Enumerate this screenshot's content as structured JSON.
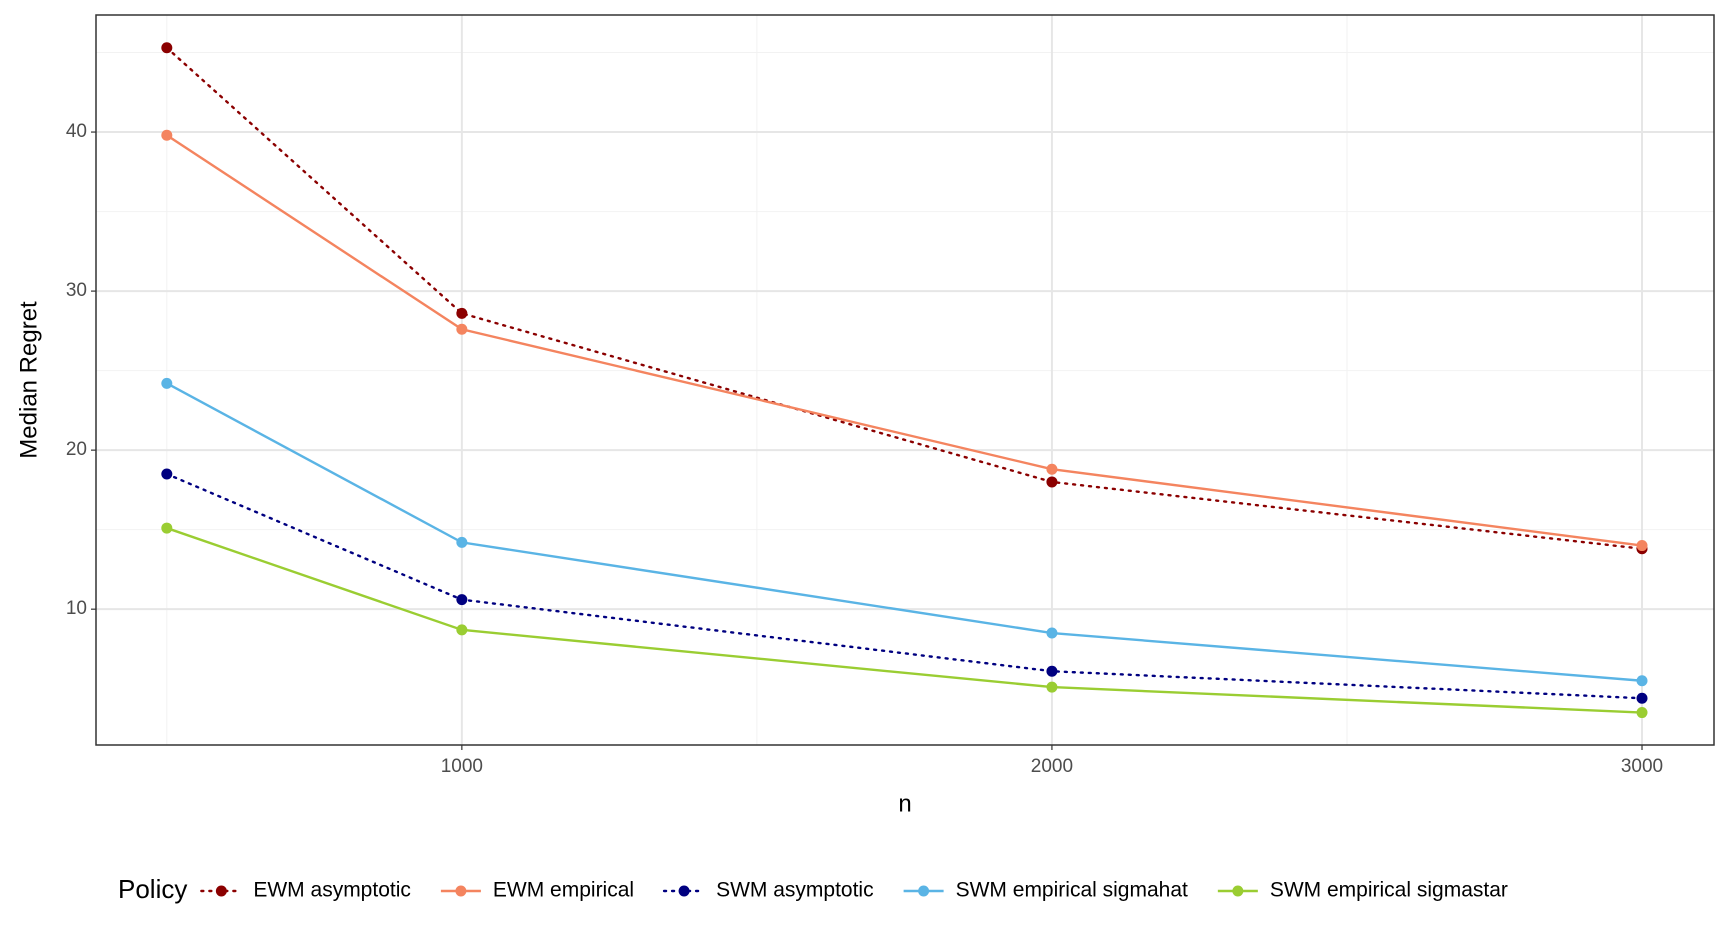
{
  "chart_data": {
    "type": "line",
    "x_label": "n",
    "y_label": "Median Regret",
    "x": [
      500,
      1000,
      2000,
      3000
    ],
    "series": [
      {
        "name": "EWM asymptotic",
        "color": "#8b0000",
        "linestyle": "dotted",
        "values": [
          45.3,
          28.6,
          18.0,
          13.8
        ]
      },
      {
        "name": "EWM empirical",
        "color": "#f4845f",
        "linestyle": "solid",
        "values": [
          39.8,
          27.6,
          18.8,
          14.0
        ]
      },
      {
        "name": "SWM asymptotic",
        "color": "#000080",
        "linestyle": "dotted",
        "values": [
          18.5,
          10.6,
          6.1,
          4.4
        ]
      },
      {
        "name": "SWM empirical sigmahat",
        "color": "#5ab4e5",
        "linestyle": "solid",
        "values": [
          24.2,
          14.2,
          8.5,
          5.5
        ]
      },
      {
        "name": "SWM empirical sigmastar",
        "color": "#9acd32",
        "linestyle": "solid",
        "values": [
          15.1,
          8.7,
          5.1,
          3.5
        ]
      }
    ],
    "xlim": [
      380,
      3122
    ],
    "xticks": [
      1000,
      2000,
      3000
    ],
    "x_minor_ticks": [
      500,
      1500,
      2500
    ],
    "ylim": [
      1.46,
      47.36
    ],
    "yticks": [
      10,
      20,
      30,
      40
    ],
    "y_minor_ticks": [
      15,
      25,
      35,
      45
    ],
    "grid": true,
    "legend_title": "Policy",
    "legend_position": "bottom"
  }
}
